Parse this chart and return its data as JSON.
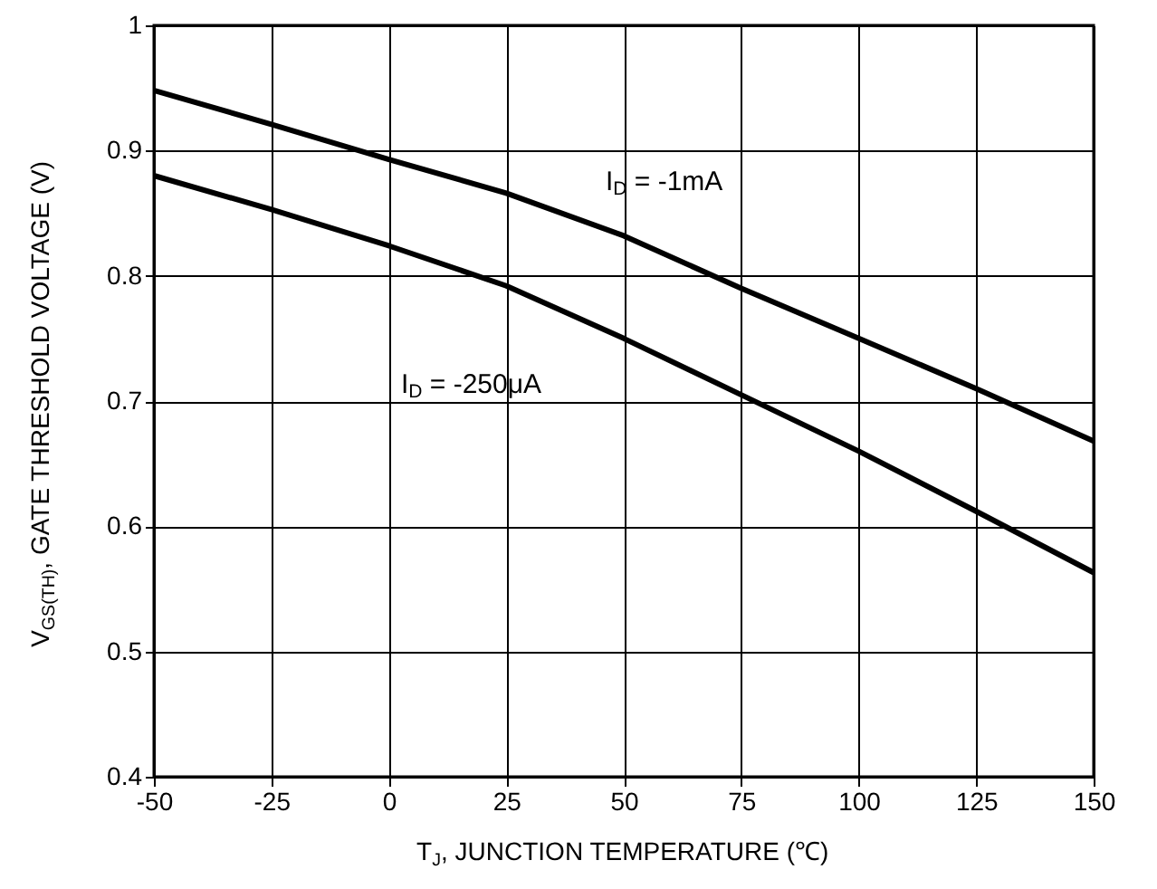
{
  "chart_data": {
    "type": "line",
    "xlabel": "T$_{J}$, JUNCTION TEMPERATURE (℃)",
    "ylabel": "V$_{GS(TH)}$, GATE THRESHOLD VOLTAGE (V)",
    "x": [
      -50,
      -25,
      0,
      25,
      50,
      75,
      100,
      125,
      150
    ],
    "series": [
      {
        "name": "I$_{D}$ = -1mA",
        "color": "#000000",
        "values": [
          0.948,
          0.921,
          0.893,
          0.866,
          0.832,
          0.79,
          0.75,
          0.71,
          0.668
        ]
      },
      {
        "name": "I$_{D}$ = -250μA",
        "color": "#000000",
        "values": [
          0.88,
          0.853,
          0.824,
          0.792,
          0.75,
          0.705,
          0.66,
          0.612,
          0.563
        ]
      }
    ],
    "xlim": [
      -50,
      150
    ],
    "xticks": [
      -50,
      -25,
      0,
      25,
      50,
      75,
      100,
      125,
      150
    ],
    "ylim": [
      0.4,
      1
    ],
    "yticks": [
      0.4,
      0.5,
      0.6,
      0.7,
      0.8,
      0.9,
      1
    ],
    "grid": true,
    "marker": "none",
    "line_style": "solid"
  }
}
